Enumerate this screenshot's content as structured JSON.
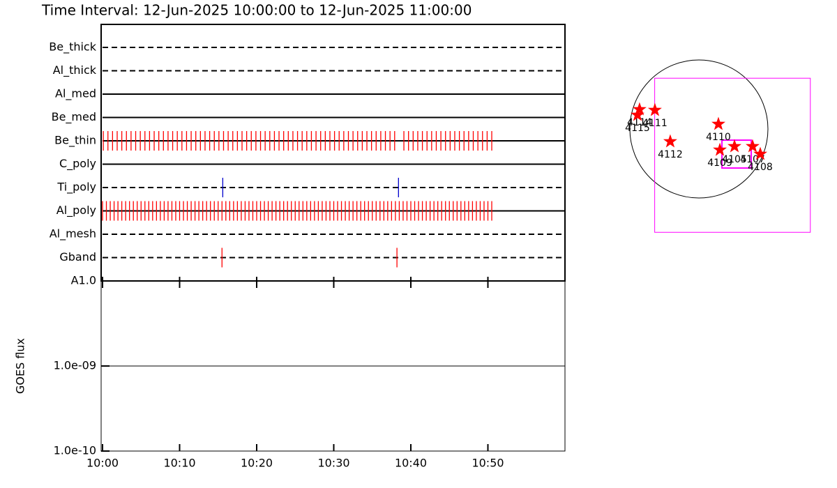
{
  "chart_data": [
    {
      "type": "timeline",
      "title": "Time Interval: 12-Jun-2025 10:00:00 to 12-Jun-2025 11:00:00",
      "xlim": [
        0,
        60
      ],
      "rows": [
        {
          "name": "Be_thick",
          "dashed": true,
          "color": "#ff0000",
          "exposures": []
        },
        {
          "name": "Al_thick",
          "dashed": true,
          "color": "#ff0000",
          "exposures": []
        },
        {
          "name": "Al_med",
          "dashed": false,
          "color": "#ff0000",
          "exposures": []
        },
        {
          "name": "Be_med",
          "dashed": false,
          "color": "#ff0000",
          "exposures": []
        },
        {
          "name": "Be_thin",
          "dashed": false,
          "color": "#ff0000",
          "exposures": [
            0.1,
            0.7,
            1.3,
            1.9,
            2.5,
            3.1,
            3.7,
            4.3,
            4.9,
            5.5,
            6.1,
            6.7,
            7.3,
            7.9,
            8.5,
            9.1,
            9.7,
            10.3,
            10.9,
            11.5,
            12.1,
            12.7,
            13.3,
            13.9,
            14.5,
            15.1,
            15.7,
            16.3,
            16.9,
            17.5,
            18.1,
            18.7,
            19.3,
            19.9,
            20.5,
            21.1,
            21.7,
            22.3,
            22.9,
            23.5,
            24.1,
            24.7,
            25.3,
            25.9,
            26.5,
            27.1,
            27.7,
            28.3,
            28.9,
            29.5,
            30.1,
            30.7,
            31.3,
            31.9,
            32.5,
            33.1,
            33.7,
            34.3,
            34.9,
            35.5,
            36.1,
            36.7,
            37.3,
            37.9,
            39.1,
            39.7,
            40.3,
            40.9,
            41.5,
            42.1,
            42.7,
            43.3,
            43.9,
            44.5,
            45.1,
            45.7,
            46.3,
            46.9,
            47.5,
            48.1,
            48.7,
            49.3,
            49.9,
            50.5
          ]
        },
        {
          "name": "C_poly",
          "dashed": false,
          "color": "#ff0000",
          "exposures": []
        },
        {
          "name": "Ti_poly",
          "dashed": true,
          "color": "#0000cc",
          "exposures": [
            15.6,
            38.4
          ]
        },
        {
          "name": "Al_poly",
          "dashed": false,
          "color": "#ff0000",
          "exposures": [
            0,
            0.5,
            1,
            1.5,
            2,
            2.5,
            3,
            3.5,
            4,
            4.5,
            5,
            5.5,
            6,
            6.5,
            7,
            7.5,
            8,
            8.5,
            9,
            9.5,
            10,
            10.5,
            11,
            11.5,
            12,
            12.5,
            13,
            13.5,
            14,
            14.5,
            15,
            15.5,
            16,
            16.5,
            17,
            17.5,
            18,
            18.5,
            19,
            19.5,
            20,
            20.5,
            21,
            21.5,
            22,
            22.5,
            23,
            23.5,
            24,
            24.5,
            25,
            25.5,
            26,
            26.5,
            27,
            27.5,
            28,
            28.5,
            29,
            29.5,
            30,
            30.5,
            31,
            31.5,
            32,
            32.5,
            33,
            33.5,
            34,
            34.5,
            35,
            35.5,
            36,
            36.5,
            37,
            37.5,
            38,
            38.5,
            39,
            39.5,
            40,
            40.5,
            41,
            41.5,
            42,
            42.5,
            43,
            43.5,
            44,
            44.5,
            45,
            45.5,
            46,
            46.5,
            47,
            47.5,
            48,
            48.5,
            49,
            49.5,
            50,
            50.5
          ]
        },
        {
          "name": "Al_mesh",
          "dashed": true,
          "color": "#ff0000",
          "exposures": []
        },
        {
          "name": "Gband",
          "dashed": true,
          "color": "#ff0000",
          "exposures": [
            15.5,
            38.2
          ]
        }
      ]
    },
    {
      "type": "line",
      "ylabel": "GOES flux",
      "log_y": true,
      "xlim": [
        0,
        60
      ],
      "xticks": [
        {
          "value": 0,
          "label": "10:00"
        },
        {
          "value": 10,
          "label": "10:10"
        },
        {
          "value": 20,
          "label": "10:20"
        },
        {
          "value": 30,
          "label": "10:30"
        },
        {
          "value": 40,
          "label": "10:40"
        },
        {
          "value": 50,
          "label": "10:50"
        }
      ],
      "ylim": [
        1e-10,
        1e-08
      ],
      "yticks": [
        {
          "value": 1e-10,
          "label": "1.0e-10"
        },
        {
          "value": 1e-09,
          "label": "1.0e-09"
        },
        {
          "value": 1e-08,
          "label": "A1.0"
        }
      ],
      "series": [
        {
          "color": "#000000",
          "x": [
            0,
            59
          ],
          "values": [
            1e-09,
            1e-09
          ]
        }
      ]
    },
    {
      "type": "map",
      "rsun": 945,
      "fov_color": "#ff00ff",
      "fovs": [
        {
          "xc": 460,
          "yc": -360,
          "width": 2130,
          "height": 2110
        },
        {
          "xc": 516,
          "yc": -344,
          "width": 401,
          "height": 382
        }
      ],
      "star_color": "#ff0000",
      "regions": [
        {
          "label": "4114",
          "x": -812,
          "y": 267
        },
        {
          "label": "4111",
          "x": -602,
          "y": 258
        },
        {
          "label": "4115",
          "x": -840,
          "y": 191
        },
        {
          "label": "4112",
          "x": -392,
          "y": -172
        },
        {
          "label": "4110",
          "x": 267,
          "y": 67
        },
        {
          "label": "4109",
          "x": 287,
          "y": -287
        },
        {
          "label": "4105",
          "x": 487,
          "y": -239
        },
        {
          "label": "4107",
          "x": 735,
          "y": -239
        },
        {
          "label": "4108",
          "x": 840,
          "y": -344
        }
      ]
    }
  ]
}
